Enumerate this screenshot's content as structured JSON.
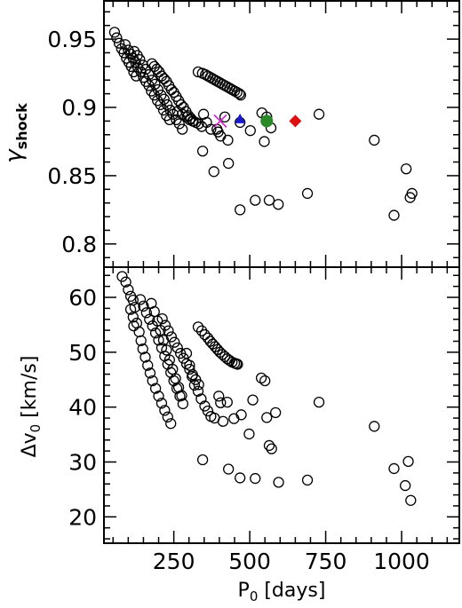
{
  "chart_data": [
    {
      "type": "scatter",
      "panel": "top",
      "ylabel_main": "γ",
      "ylabel_sub": "shock",
      "xlim": [
        20,
        1190
      ],
      "ylim": [
        0.783,
        0.978
      ],
      "yticks": [
        {
          "value": 0.8,
          "label": "0.8"
        },
        {
          "value": 0.85,
          "label": "0.85"
        },
        {
          "value": 0.9,
          "label": "0.9"
        },
        {
          "value": 0.95,
          "label": "0.95"
        }
      ],
      "series": [
        {
          "marker": "open-circle",
          "points": [
            [
              55,
              0.955
            ],
            [
              62,
              0.951
            ],
            [
              70,
              0.947
            ],
            [
              78,
              0.943
            ],
            [
              86,
              0.94
            ],
            [
              94,
              0.936
            ],
            [
              102,
              0.933
            ],
            [
              110,
              0.93
            ],
            [
              118,
              0.926
            ],
            [
              126,
              0.923
            ],
            [
              90,
              0.946
            ],
            [
              100,
              0.942
            ],
            [
              108,
              0.939
            ],
            [
              116,
              0.936
            ],
            [
              124,
              0.933
            ],
            [
              132,
              0.929
            ],
            [
              142,
              0.926
            ],
            [
              150,
              0.922
            ],
            [
              158,
              0.919
            ],
            [
              168,
              0.916
            ],
            [
              176,
              0.912
            ],
            [
              186,
              0.909
            ],
            [
              196,
              0.905
            ],
            [
              206,
              0.902
            ],
            [
              216,
              0.898
            ],
            [
              226,
              0.894
            ],
            [
              236,
              0.891
            ],
            [
              120,
              0.941
            ],
            [
              130,
              0.938
            ],
            [
              138,
              0.935
            ],
            [
              148,
              0.931
            ],
            [
              158,
              0.928
            ],
            [
              168,
              0.924
            ],
            [
              178,
              0.92
            ],
            [
              188,
              0.917
            ],
            [
              198,
              0.913
            ],
            [
              208,
              0.909
            ],
            [
              218,
              0.906
            ],
            [
              228,
              0.902
            ],
            [
              238,
              0.898
            ],
            [
              248,
              0.895
            ],
            [
              258,
              0.891
            ],
            [
              268,
              0.888
            ],
            [
              278,
              0.884
            ],
            [
              178,
              0.932
            ],
            [
              186,
              0.93
            ],
            [
              194,
              0.928
            ],
            [
              202,
              0.926
            ],
            [
              210,
              0.923
            ],
            [
              218,
              0.921
            ],
            [
              226,
              0.919
            ],
            [
              234,
              0.916
            ],
            [
              242,
              0.913
            ],
            [
              250,
              0.911
            ],
            [
              258,
              0.908
            ],
            [
              266,
              0.905
            ],
            [
              274,
              0.902
            ],
            [
              282,
              0.9
            ],
            [
              290,
              0.897
            ],
            [
              298,
              0.894
            ],
            [
              306,
              0.892
            ],
            [
              314,
              0.89
            ],
            [
              262,
              0.897
            ],
            [
              278,
              0.895
            ],
            [
              294,
              0.893
            ],
            [
              302,
              0.891
            ],
            [
              312,
              0.89
            ],
            [
              322,
              0.889
            ],
            [
              332,
              0.888
            ],
            [
              342,
              0.886
            ],
            [
              330,
              0.926
            ],
            [
              344,
              0.925
            ],
            [
              354,
              0.924
            ],
            [
              362,
              0.923
            ],
            [
              370,
              0.922
            ],
            [
              378,
              0.921
            ],
            [
              386,
              0.92
            ],
            [
              394,
              0.919
            ],
            [
              402,
              0.918
            ],
            [
              410,
              0.917
            ],
            [
              418,
              0.916
            ],
            [
              426,
              0.915
            ],
            [
              434,
              0.914
            ],
            [
              442,
              0.913
            ],
            [
              450,
              0.912
            ],
            [
              458,
              0.911
            ],
            [
              466,
              0.91
            ],
            [
              470,
              0.909
            ],
            [
              348,
              0.895
            ],
            [
              358,
              0.889
            ],
            [
              372,
              0.884
            ],
            [
              392,
              0.884
            ],
            [
              396,
              0.882
            ],
            [
              404,
              0.879
            ],
            [
              418,
              0.893
            ],
            [
              428,
              0.876
            ],
            [
              468,
              0.889
            ],
            [
              502,
              0.883
            ],
            [
              540,
              0.896
            ],
            [
              556,
              0.893
            ],
            [
              570,
              0.885
            ],
            [
              728,
              0.895
            ],
            [
              345,
              0.868
            ],
            [
              382,
              0.853
            ],
            [
              430,
              0.859
            ],
            [
              468,
              0.825
            ],
            [
              518,
              0.832
            ],
            [
              564,
              0.832
            ],
            [
              594,
              0.829
            ],
            [
              690,
              0.837
            ],
            [
              548,
              0.875
            ],
            [
              910,
              0.876
            ],
            [
              975,
              0.821
            ],
            [
              1015,
              0.855
            ],
            [
              1028,
              0.834
            ],
            [
              1034,
              0.837
            ]
          ]
        },
        {
          "marker": "cross",
          "color": "#cc33cc",
          "points": [
            [
              403,
              0.89
            ]
          ]
        },
        {
          "marker": "triangle",
          "color": "#1a1acc",
          "points": [
            [
              468,
              0.891
            ]
          ]
        },
        {
          "marker": "filled-circle",
          "color": "#2a8a2a",
          "points": [
            [
              556,
              0.89
            ]
          ]
        },
        {
          "marker": "diamond",
          "color": "#dd1111",
          "points": [
            [
              650,
              0.89
            ]
          ]
        }
      ]
    },
    {
      "type": "scatter",
      "panel": "bottom",
      "ylabel": "Δv",
      "ylabel_sub": "0",
      "ylabel_unit": " [km/s]",
      "xlabel": "P",
      "xlabel_sub": "0",
      "xlabel_unit": " [days]",
      "xlim": [
        20,
        1190
      ],
      "ylim": [
        15.2,
        65.5
      ],
      "xticks": [
        {
          "value": 250,
          "label": "250"
        },
        {
          "value": 500,
          "label": "500"
        },
        {
          "value": 750,
          "label": "750"
        },
        {
          "value": 1000,
          "label": "1000"
        }
      ],
      "yticks": [
        {
          "value": 20,
          "label": "20"
        },
        {
          "value": 30,
          "label": "30"
        },
        {
          "value": 40,
          "label": "40"
        },
        {
          "value": 50,
          "label": "50"
        },
        {
          "value": 60,
          "label": "60"
        }
      ],
      "series": [
        {
          "marker": "open-circle",
          "points": [
            [
              80,
              63.8
            ],
            [
              92,
              62.8
            ],
            [
              100,
              61.4
            ],
            [
              108,
              60.2
            ],
            [
              116,
              59.5
            ],
            [
              108,
              57.8
            ],
            [
              116,
              56.4
            ],
            [
              122,
              58.2
            ],
            [
              118,
              54.8
            ],
            [
              128,
              55.3
            ],
            [
              136,
              53.7
            ],
            [
              142,
              52.1
            ],
            [
              148,
              50.6
            ],
            [
              156,
              49.1
            ],
            [
              164,
              47.6
            ],
            [
              172,
              46.2
            ],
            [
              180,
              44.8
            ],
            [
              190,
              43.4
            ],
            [
              200,
              42.0
            ],
            [
              210,
              40.7
            ],
            [
              220,
              39.4
            ],
            [
              230,
              38.2
            ],
            [
              240,
              37.0
            ],
            [
              140,
              59.6
            ],
            [
              150,
              58.4
            ],
            [
              160,
              57.2
            ],
            [
              170,
              56.0
            ],
            [
              180,
              54.8
            ],
            [
              190,
              53.5
            ],
            [
              200,
              52.2
            ],
            [
              210,
              50.8
            ],
            [
              220,
              49.3
            ],
            [
              230,
              47.8
            ],
            [
              240,
              46.3
            ],
            [
              250,
              44.8
            ],
            [
              260,
              43.4
            ],
            [
              270,
              42.0
            ],
            [
              280,
              40.6
            ],
            [
              176,
              58.9
            ],
            [
              186,
              57.4
            ],
            [
              196,
              55.7
            ],
            [
              206,
              54.0
            ],
            [
              216,
              52.2
            ],
            [
              226,
              50.4
            ],
            [
              236,
              48.6
            ],
            [
              246,
              46.9
            ],
            [
              256,
              45.2
            ],
            [
              266,
              43.6
            ],
            [
              276,
              42.1
            ],
            [
              212,
              56.1
            ],
            [
              222,
              54.9
            ],
            [
              232,
              53.9
            ],
            [
              242,
              52.8
            ],
            [
              252,
              51.8
            ],
            [
              262,
              50.8
            ],
            [
              272,
              49.8
            ],
            [
              282,
              48.9
            ],
            [
              292,
              47.9
            ],
            [
              302,
              46.9
            ],
            [
              312,
              45.9
            ],
            [
              322,
              45.0
            ],
            [
              332,
              44.1
            ],
            [
              330,
              54.6
            ],
            [
              342,
              53.9
            ],
            [
              352,
              53.2
            ],
            [
              362,
              52.6
            ],
            [
              370,
              52.0
            ],
            [
              378,
              51.5
            ],
            [
              386,
              51.0
            ],
            [
              394,
              50.5
            ],
            [
              402,
              50.0
            ],
            [
              410,
              49.6
            ],
            [
              418,
              49.2
            ],
            [
              426,
              48.8
            ],
            [
              434,
              48.5
            ],
            [
              442,
              48.2
            ],
            [
              450,
              48.0
            ],
            [
              456,
              47.9
            ],
            [
              460,
              47.8
            ],
            [
              292,
              49.8
            ],
            [
              302,
              47.6
            ],
            [
              310,
              45.6
            ],
            [
              318,
              44.0
            ],
            [
              330,
              42.9
            ],
            [
              340,
              41.5
            ],
            [
              352,
              40.2
            ],
            [
              362,
              39.3
            ],
            [
              372,
              38.3
            ],
            [
              384,
              38.0
            ],
            [
              398,
              42.0
            ],
            [
              404,
              40.8
            ],
            [
              412,
              37.4
            ],
            [
              426,
              40.9
            ],
            [
              448,
              37.9
            ],
            [
              472,
              38.6
            ],
            [
              498,
              35.1
            ],
            [
              510,
              41.3
            ],
            [
              538,
              45.3
            ],
            [
              550,
              44.8
            ],
            [
              556,
              38.1
            ],
            [
              564,
              33.0
            ],
            [
              572,
              32.4
            ],
            [
              585,
              39.0
            ],
            [
              728,
              40.9
            ],
            [
              345,
              30.4
            ],
            [
              430,
              28.7
            ],
            [
              468,
              27.1
            ],
            [
              518,
              27.0
            ],
            [
              595,
              26.3
            ],
            [
              690,
              26.7
            ],
            [
              910,
              36.5
            ],
            [
              975,
              28.8
            ],
            [
              1012,
              25.7
            ],
            [
              1022,
              30.1
            ],
            [
              1030,
              23.0
            ]
          ]
        }
      ]
    }
  ]
}
